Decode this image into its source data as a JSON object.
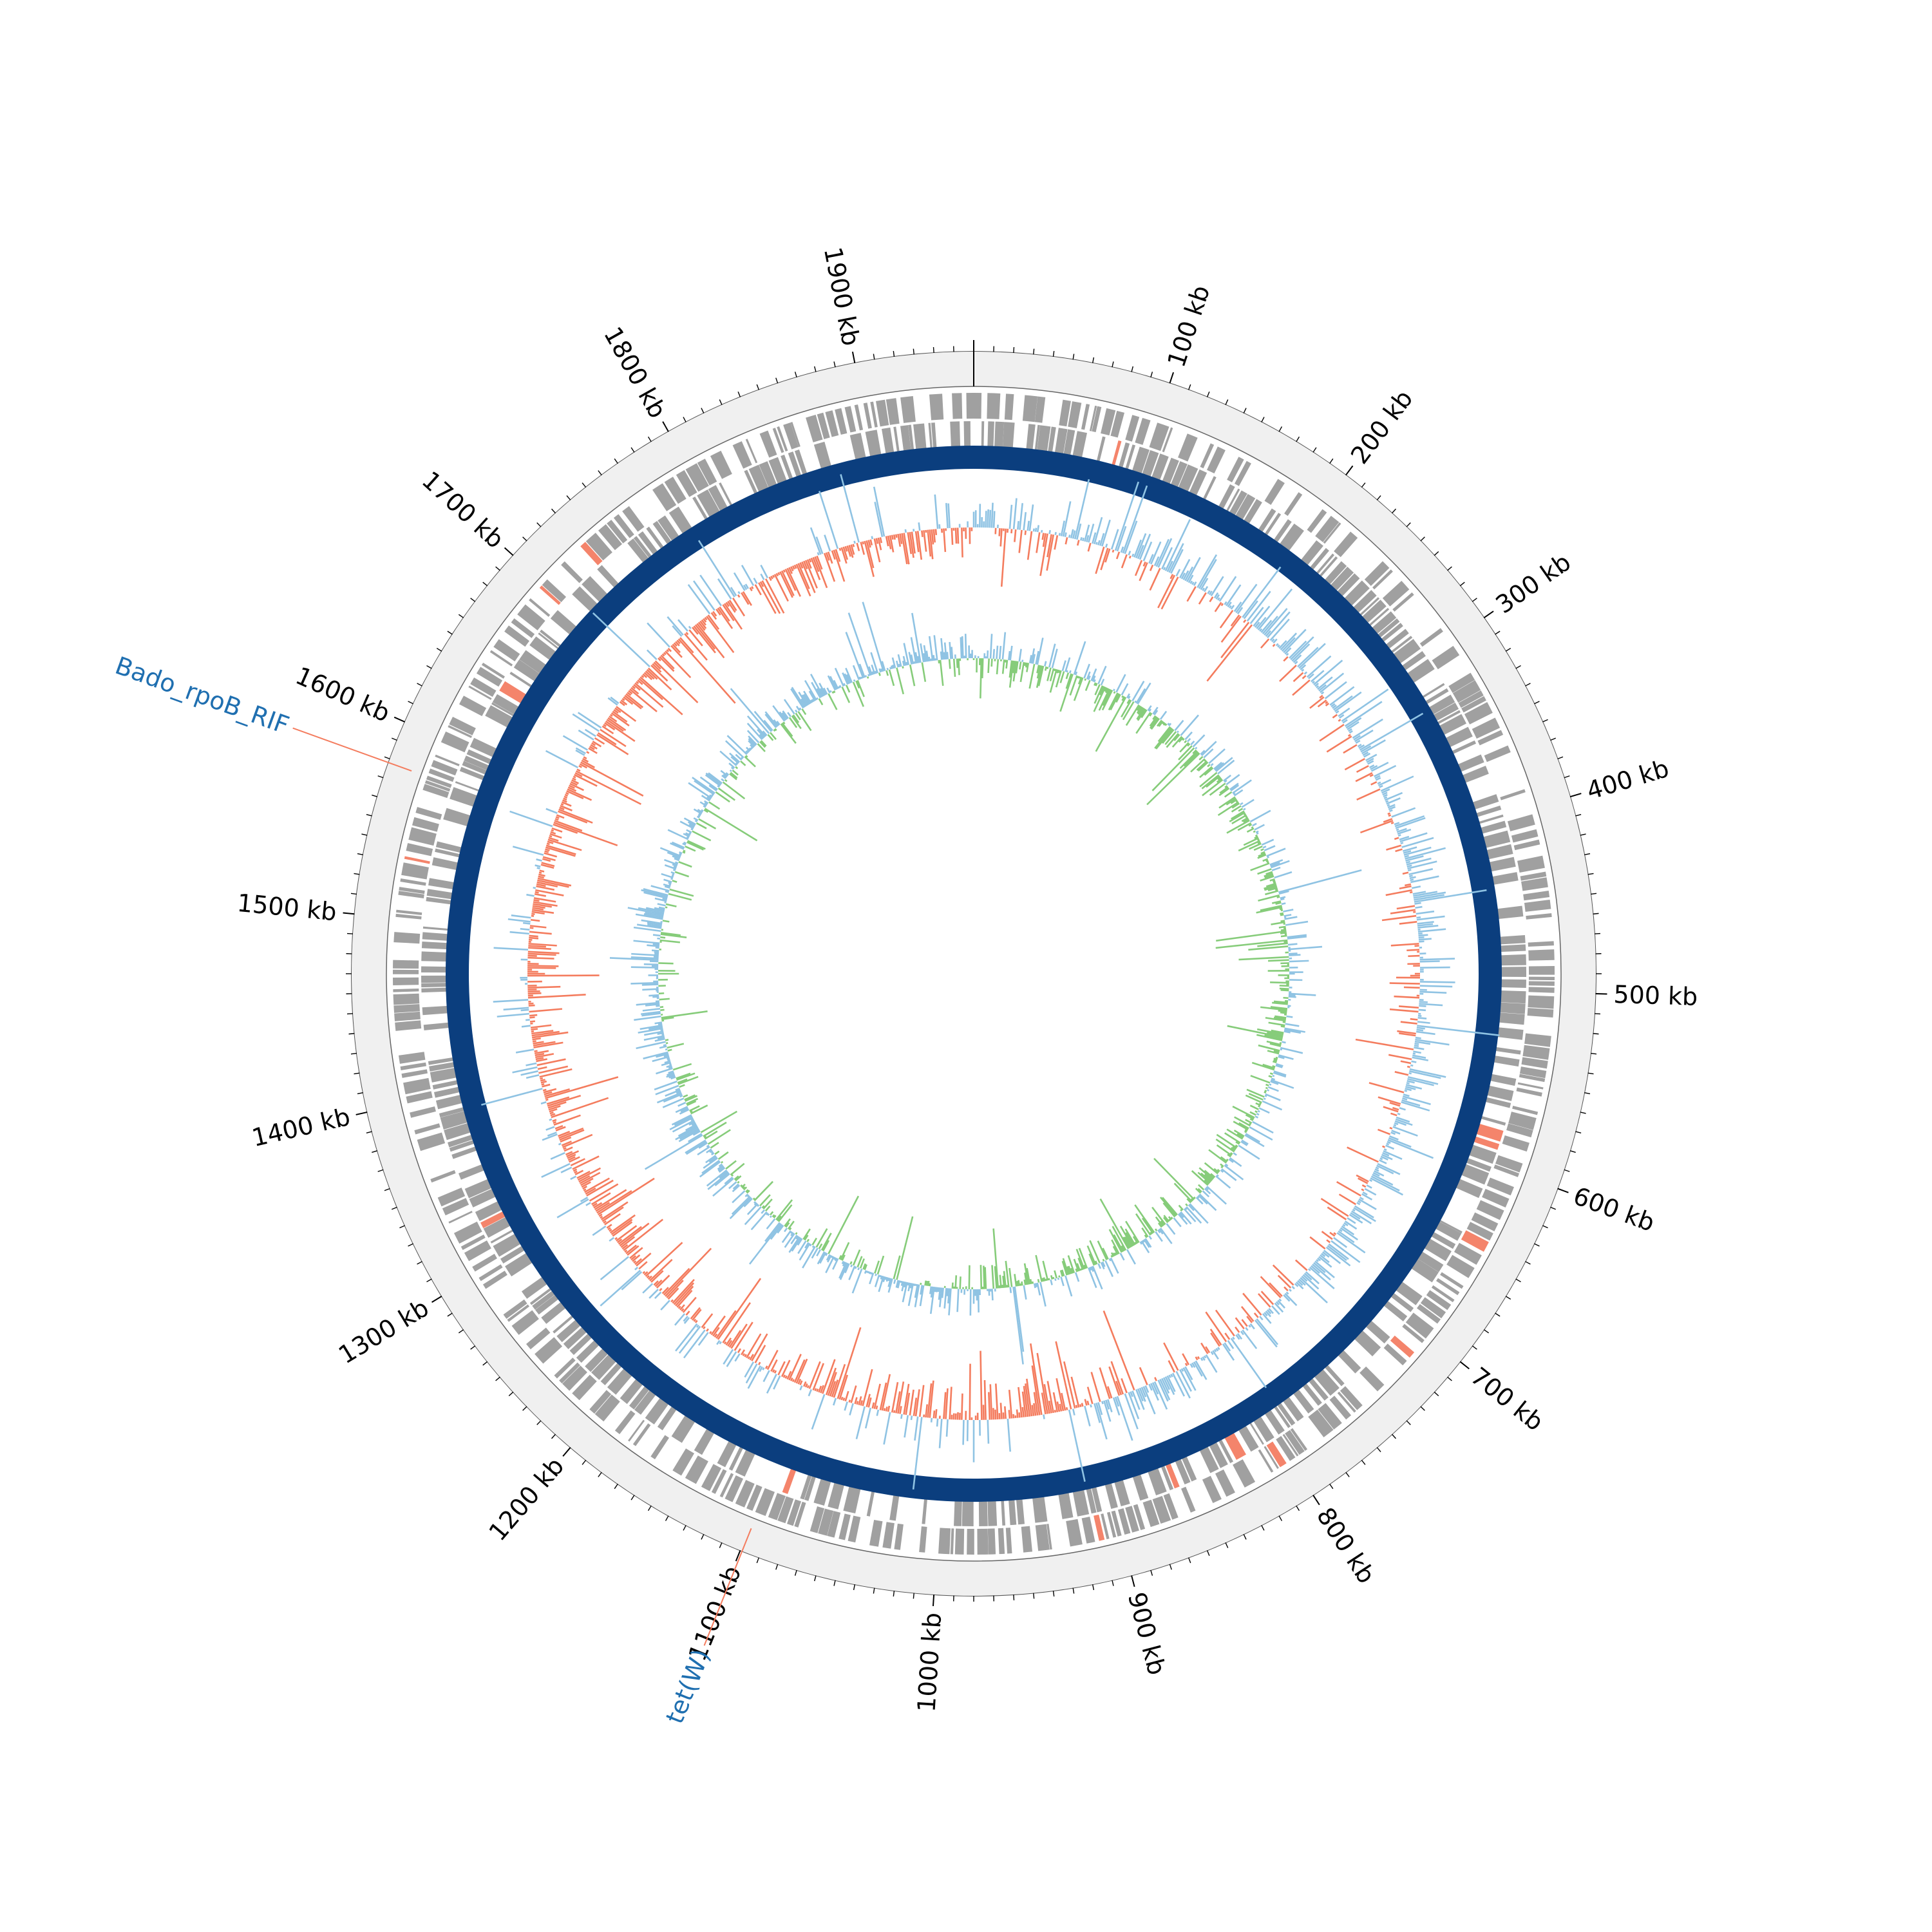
{
  "genome": {
    "length_kb": 1960,
    "tick_step_kb": 10,
    "label_step_kb": 100,
    "labels": [
      "100 kb",
      "200 kb",
      "300 kb",
      "400 kb",
      "500 kb",
      "600 kb",
      "700 kb",
      "800 kb",
      "900 kb",
      "1000 kb",
      "1100 kb",
      "1200 kb",
      "1300 kb",
      "1400 kb",
      "1500 kb",
      "1600 kb",
      "1700 kb",
      "1800 kb",
      "1900 kb"
    ]
  },
  "annotations": [
    {
      "label": "Bado_rpoB_RIF",
      "position_kb": 1578
    },
    {
      "label": "tet(W)",
      "position_kb": 1099
    }
  ],
  "colors": {
    "outer_ring": "#f0f0f0",
    "gene": "#a0a0a0",
    "gene_highlight": "#f4846b",
    "backbone": "#0b3e7e",
    "gc_positive": "#8fc3e3",
    "gc_negative": "#f47c5e",
    "skew_positive": "#8fc3e3",
    "skew_negative": "#86cc7a",
    "annotation_text": "#1f6fb0",
    "annotation_line": "#f47c5e"
  },
  "tracks": [
    "outer-ring",
    "gene-track",
    "backbone-ring",
    "gc-content-track",
    "gc-skew-track"
  ]
}
